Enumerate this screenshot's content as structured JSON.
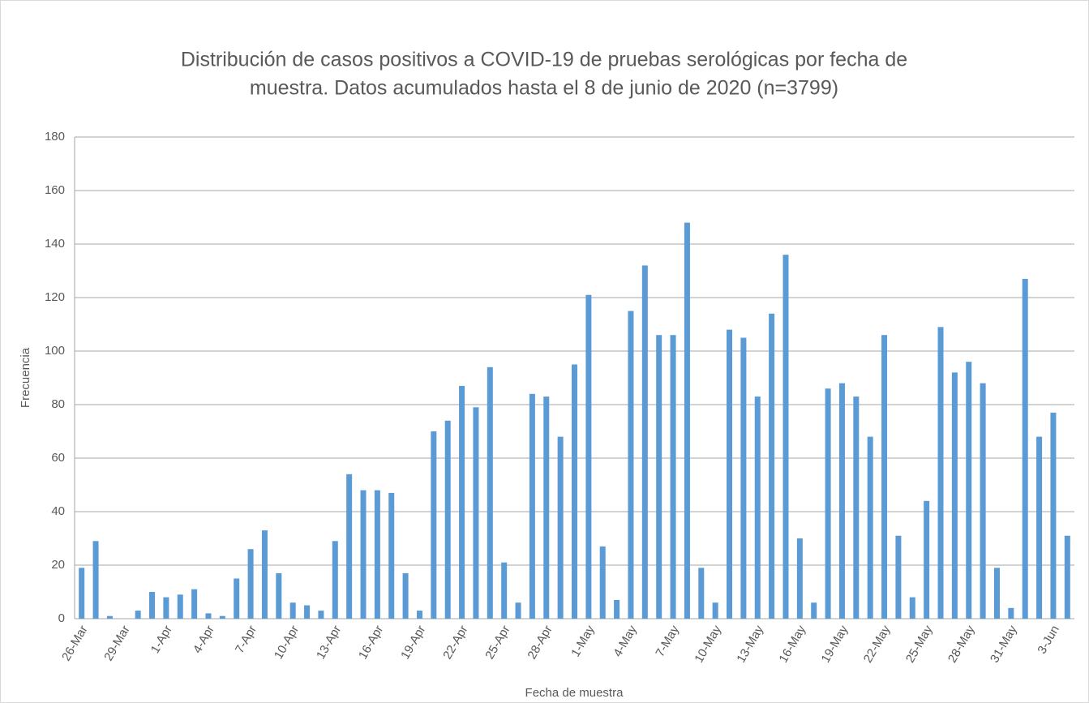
{
  "chart_data": {
    "type": "bar",
    "title": [
      "Distribución de casos positivos a COVID-19 de pruebas serológicas por fecha de",
      "muestra. Datos acumulados hasta el 8 de junio de 2020 (n=3799)"
    ],
    "x_label": "Fecha de muestra",
    "y_label": "Frecuencia",
    "categories": [
      "26-Mar",
      null,
      null,
      "29-Mar",
      null,
      null,
      "1-Apr",
      null,
      null,
      "4-Apr",
      null,
      null,
      "7-Apr",
      null,
      null,
      "10-Apr",
      null,
      null,
      "13-Apr",
      null,
      null,
      "16-Apr",
      null,
      null,
      "19-Apr",
      null,
      null,
      "22-Apr",
      null,
      null,
      "25-Apr",
      null,
      null,
      "28-Apr",
      null,
      null,
      "1-May",
      null,
      null,
      "4-May",
      null,
      null,
      "7-May",
      null,
      null,
      "10-May",
      null,
      null,
      "13-May",
      null,
      null,
      "16-May",
      null,
      null,
      "19-May",
      null,
      null,
      "22-May",
      null,
      null,
      "25-May",
      null,
      null,
      "28-May",
      null,
      null,
      "31-May",
      null,
      null,
      "3-Jun",
      null
    ],
    "values": [
      19,
      29,
      1,
      0,
      3,
      10,
      8,
      9,
      11,
      2,
      1,
      15,
      26,
      33,
      17,
      6,
      5,
      3,
      29,
      54,
      48,
      48,
      47,
      17,
      3,
      70,
      74,
      87,
      79,
      94,
      21,
      6,
      84,
      83,
      68,
      95,
      121,
      27,
      7,
      115,
      132,
      106,
      106,
      148,
      19,
      6,
      108,
      105,
      83,
      114,
      136,
      30,
      6,
      86,
      88,
      83,
      68,
      106,
      31,
      8,
      44,
      109,
      92,
      96,
      88,
      19,
      4,
      127,
      68,
      77,
      31
    ],
    "color": "#5b9bd5",
    "ylim": [
      0,
      180
    ],
    "yticks": [
      0,
      20,
      40,
      60,
      80,
      100,
      120,
      140,
      160,
      180
    ],
    "grid": true
  }
}
